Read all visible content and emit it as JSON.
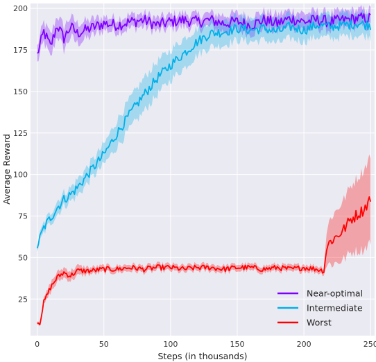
{
  "chart_data": {
    "type": "line",
    "title": "",
    "xlabel": "Steps (in thousands)",
    "ylabel": "Average Reward",
    "xlim": [
      -5,
      253
    ],
    "ylim": [
      3,
      203
    ],
    "xticks": [
      0,
      50,
      100,
      150,
      200,
      250
    ],
    "yticks": [
      25,
      50,
      75,
      100,
      125,
      150,
      175,
      200
    ],
    "grid": true,
    "background": "#eaeaf2",
    "legend_position": "bottom-right",
    "series": [
      {
        "name": "Near-optimal",
        "color": "#7f00ff",
        "x": [
          0,
          5,
          10,
          15,
          20,
          25,
          30,
          40,
          50,
          60,
          70,
          80,
          90,
          100,
          110,
          120,
          130,
          140,
          150,
          160,
          170,
          180,
          190,
          200,
          210,
          220,
          230,
          240,
          250
        ],
        "values": [
          172,
          186,
          177,
          190,
          182,
          189,
          185,
          188,
          191,
          190,
          192,
          193,
          190,
          192,
          193,
          192,
          193,
          191,
          192,
          190,
          193,
          191,
          194,
          192,
          193,
          192,
          193,
          194,
          194
        ],
        "band": [
          5,
          6,
          7,
          6,
          7,
          6,
          6,
          5,
          4,
          4,
          4,
          4,
          4,
          4,
          4,
          4,
          4,
          5,
          5,
          5,
          5,
          5,
          5,
          5,
          5,
          5,
          5,
          5,
          5
        ]
      },
      {
        "name": "Intermediate",
        "color": "#00b0e8",
        "x": [
          0,
          5,
          10,
          15,
          20,
          25,
          30,
          40,
          50,
          60,
          70,
          80,
          90,
          100,
          110,
          120,
          130,
          140,
          150,
          160,
          170,
          180,
          190,
          200,
          210,
          220,
          230,
          240,
          250
        ],
        "values": [
          57,
          68,
          74,
          80,
          85,
          88,
          92,
          102,
          112,
          125,
          137,
          148,
          158,
          166,
          173,
          180,
          185,
          186,
          188,
          187,
          188,
          186,
          189,
          187,
          190,
          189,
          190,
          191,
          190
        ],
        "band": [
          2,
          3,
          3,
          4,
          4,
          4,
          5,
          5,
          6,
          8,
          9,
          10,
          10,
          9,
          9,
          8,
          8,
          8,
          7,
          7,
          7,
          7,
          7,
          7,
          7,
          7,
          7,
          7,
          7
        ]
      },
      {
        "name": "Worst",
        "color": "#ff0000",
        "x": [
          0,
          2,
          5,
          10,
          15,
          20,
          25,
          30,
          40,
          50,
          60,
          70,
          80,
          90,
          100,
          110,
          120,
          130,
          140,
          150,
          160,
          170,
          180,
          190,
          200,
          210,
          215,
          217,
          220,
          225,
          230,
          235,
          240,
          245,
          250
        ],
        "values": [
          11,
          11,
          23,
          32,
          38,
          41,
          39,
          42,
          42,
          43,
          43,
          44,
          43,
          44,
          44,
          43,
          44,
          44,
          43,
          44,
          44,
          43,
          44,
          43,
          44,
          43,
          42,
          56,
          60,
          63,
          67,
          73,
          76,
          79,
          86
        ],
        "band": [
          1,
          1,
          2,
          3,
          3,
          3,
          3,
          3,
          2,
          2,
          2,
          2,
          2,
          2,
          2,
          2,
          2,
          2,
          2,
          2,
          2,
          2,
          2,
          2,
          2,
          2,
          2,
          10,
          14,
          16,
          18,
          20,
          22,
          24,
          26
        ]
      }
    ]
  }
}
